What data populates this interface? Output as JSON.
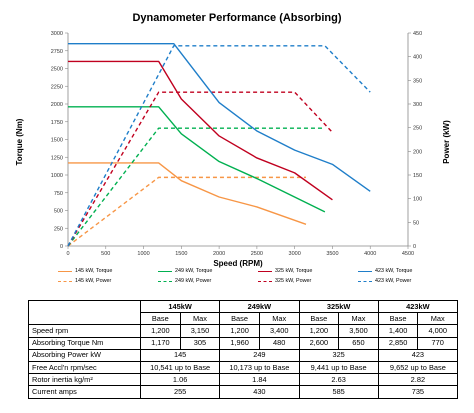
{
  "chart_data": {
    "type": "line",
    "title": "Dynamometer Performance (Absorbing)",
    "xlabel": "Speed (RPM)",
    "ylabel_left": "Torque (Nm)",
    "ylabel_right": "Power (kW)",
    "xlim": [
      0,
      4500
    ],
    "ylim_left": [
      0,
      3000
    ],
    "ylim_right": [
      0,
      450
    ],
    "x_ticks": [
      "0",
      "500",
      "1000",
      "1500",
      "2000",
      "2500",
      "3000",
      "3500",
      "4000",
      "4500"
    ],
    "y_ticks_left": [
      "0",
      "250",
      "500",
      "750",
      "1000",
      "1250",
      "1500",
      "1750",
      "2000",
      "2250",
      "2500",
      "2750",
      "3000"
    ],
    "y_ticks_right": [
      "0",
      "50",
      "100",
      "150",
      "200",
      "250",
      "300",
      "350",
      "400",
      "450"
    ],
    "grid": false,
    "legend_position": "bottom",
    "series": [
      {
        "name": "145 kW, Torque",
        "axis": "left",
        "style": "solid",
        "color": "#f79646",
        "x": [
          0,
          1200,
          1500,
          2000,
          2500,
          3150
        ],
        "y": [
          1170,
          1170,
          920,
          690,
          550,
          305
        ]
      },
      {
        "name": "145 kW, Power",
        "axis": "left",
        "style": "dashed",
        "color": "#f79646",
        "x": [
          0,
          1200,
          3150
        ],
        "y": [
          0,
          145,
          145
        ]
      },
      {
        "name": "249 kW, Torque",
        "axis": "right",
        "style": "solid",
        "color": "#00b050",
        "x": [
          0,
          1200,
          1500,
          2000,
          2500,
          3400
        ],
        "y": [
          1960,
          1960,
          1580,
          1190,
          950,
          480
        ]
      },
      {
        "name": "249 kW, Power",
        "axis": "right",
        "style": "dashed",
        "color": "#00b050",
        "x": [
          0,
          1200,
          3400
        ],
        "y": [
          0,
          249,
          249
        ]
      },
      {
        "name": "325 kW, Torque",
        "axis": "left",
        "style": "solid",
        "color": "#c0001f",
        "x": [
          0,
          1200,
          1500,
          2000,
          2500,
          3000,
          3500
        ],
        "y": [
          2600,
          2600,
          2070,
          1550,
          1240,
          1030,
          650
        ]
      },
      {
        "name": "325 kW, Power",
        "axis": "right",
        "style": "dashed",
        "color": "#c0001f",
        "x": [
          0,
          1200,
          3000,
          3500
        ],
        "y": [
          0,
          325,
          325,
          240
        ]
      },
      {
        "name": "423 kW, Torque",
        "axis": "left",
        "style": "solid",
        "color": "#1f7ec9",
        "x": [
          0,
          1400,
          2000,
          2500,
          3000,
          3500,
          4000
        ],
        "y": [
          2850,
          2850,
          2020,
          1620,
          1350,
          1150,
          770
        ]
      },
      {
        "name": "423 kW, Power",
        "axis": "right",
        "style": "dashed",
        "color": "#1f7ec9",
        "x": [
          0,
          1400,
          3400,
          4000
        ],
        "y": [
          0,
          423,
          423,
          325
        ]
      }
    ]
  },
  "legend": [
    {
      "label": "145 kW, Torque",
      "color": "#f79646",
      "dash": "solid"
    },
    {
      "label": "249 kW, Torque",
      "color": "#00b050",
      "dash": "solid"
    },
    {
      "label": "325 kW, Torque",
      "color": "#c0001f",
      "dash": "solid"
    },
    {
      "label": "423 kW, Torque",
      "color": "#1f7ec9",
      "dash": "solid"
    },
    {
      "label": "145 kW, Power",
      "color": "#f79646",
      "dash": "dashed"
    },
    {
      "label": "249 kW, Power",
      "color": "#00b050",
      "dash": "dashed"
    },
    {
      "label": "325 kW, Power",
      "color": "#c0001f",
      "dash": "dashed"
    },
    {
      "label": "423 kW, Power",
      "color": "#1f7ec9",
      "dash": "dashed"
    }
  ],
  "table": {
    "models": [
      "145kW",
      "249kW",
      "325kW",
      "423kW"
    ],
    "subheaders": [
      "Base",
      "Max"
    ],
    "rows": [
      {
        "label": "Speed rpm",
        "cells": [
          "1,200",
          "3,150",
          "1,200",
          "3,400",
          "1,200",
          "3,500",
          "1,400",
          "4,000"
        ],
        "merged": false
      },
      {
        "label": "Absorbing Torque Nm",
        "cells": [
          "1,170",
          "305",
          "1,960",
          "480",
          "2,600",
          "650",
          "2,850",
          "770"
        ],
        "merged": false
      },
      {
        "label": "Absorbing Power kW",
        "cells": [
          "145",
          "249",
          "325",
          "423"
        ],
        "merged": true
      },
      {
        "label": "Free Accl'n rpm/sec",
        "cells": [
          "10,541 up to Base",
          "10,173 up to Base",
          "9,441 up to Base",
          "9,652 up to Base"
        ],
        "merged": true
      },
      {
        "label": "Rotor inertia kg/m²",
        "cells": [
          "1.06",
          "1.84",
          "2.63",
          "2.82"
        ],
        "merged": true
      },
      {
        "label": "Current amps",
        "cells": [
          "255",
          "430",
          "585",
          "735"
        ],
        "merged": true
      }
    ]
  }
}
